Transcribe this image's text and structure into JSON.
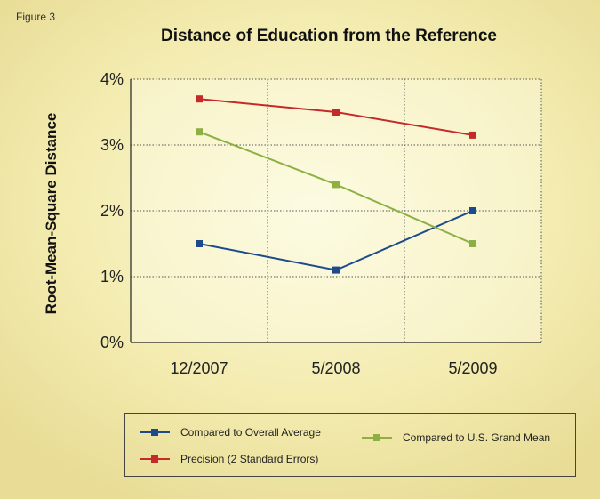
{
  "figure_label": "Figure 3",
  "chart_data": {
    "type": "line",
    "title": "Distance of Education from the Reference",
    "xlabel": "",
    "ylabel": "Root-Mean-Square Distance",
    "categories": [
      "12/2007",
      "5/2008",
      "5/2009"
    ],
    "ylim": [
      0,
      4
    ],
    "yticks": [
      0,
      1,
      2,
      3,
      4
    ],
    "ytick_labels": [
      "0%",
      "1%",
      "2%",
      "3%",
      "4%"
    ],
    "grid": true,
    "grid_style": "dotted",
    "legend_position": "bottom",
    "series": [
      {
        "name": "Compared to Overall Average",
        "values": [
          1.5,
          1.1,
          2.0
        ],
        "color": "#1c4a8c"
      },
      {
        "name": "Precision (2 Standard Errors)",
        "values": [
          3.7,
          3.5,
          3.15
        ],
        "color": "#c42a2a"
      },
      {
        "name": "Compared to U.S. Grand Mean",
        "values": [
          3.2,
          2.4,
          1.5
        ],
        "color": "#8cb044"
      }
    ]
  }
}
